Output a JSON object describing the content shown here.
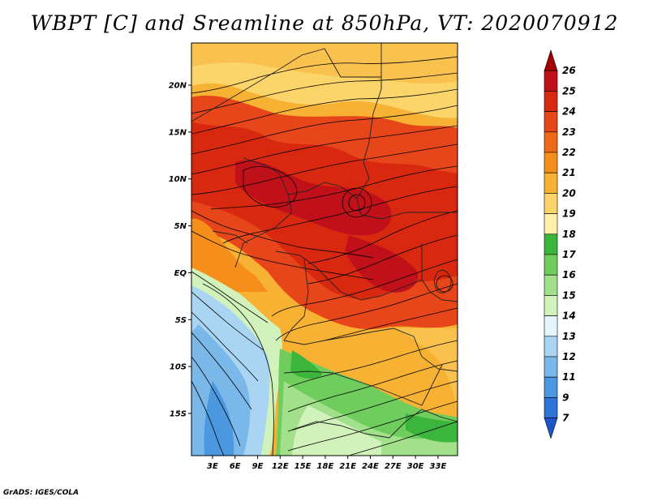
{
  "title": "WBPT [C] and Sreamline at 850hPa, VT: 2020070912",
  "credit": "GrADS: IGES/COLA",
  "map": {
    "lat_labels": [
      "20N",
      "15N",
      "10N",
      "5N",
      "EQ",
      "5S",
      "10S",
      "15S"
    ],
    "lon_labels": [
      "3E",
      "6E",
      "9E",
      "12E",
      "15E",
      "18E",
      "21E",
      "24E",
      "27E",
      "30E",
      "33E"
    ],
    "lat_values": [
      20,
      15,
      10,
      5,
      0,
      -5,
      -10,
      -15
    ],
    "lon_values": [
      3,
      6,
      9,
      12,
      15,
      18,
      21,
      24,
      27,
      30,
      33
    ],
    "lat_range": [
      -19.5,
      24.5
    ],
    "lon_range": [
      0.2,
      35.6
    ]
  },
  "colorbar": {
    "levels": [
      "26",
      "25",
      "24",
      "23",
      "22",
      "21",
      "20",
      "19",
      "18",
      "17",
      "16",
      "15",
      "14",
      "13",
      "12",
      "11",
      "9",
      "7"
    ],
    "colors": [
      "#a50000",
      "#c0101a",
      "#d8280f",
      "#e6461a",
      "#ee6a19",
      "#f58e1b",
      "#f7b234",
      "#fbd46a",
      "#fdf0a8",
      "#3bb53b",
      "#6fcd5e",
      "#a3e08c",
      "#d2f2bc",
      "#e4f6fb",
      "#a9d4f2",
      "#7ab8ea",
      "#4b97e0",
      "#2d73d8",
      "#1c55c8"
    ]
  }
}
